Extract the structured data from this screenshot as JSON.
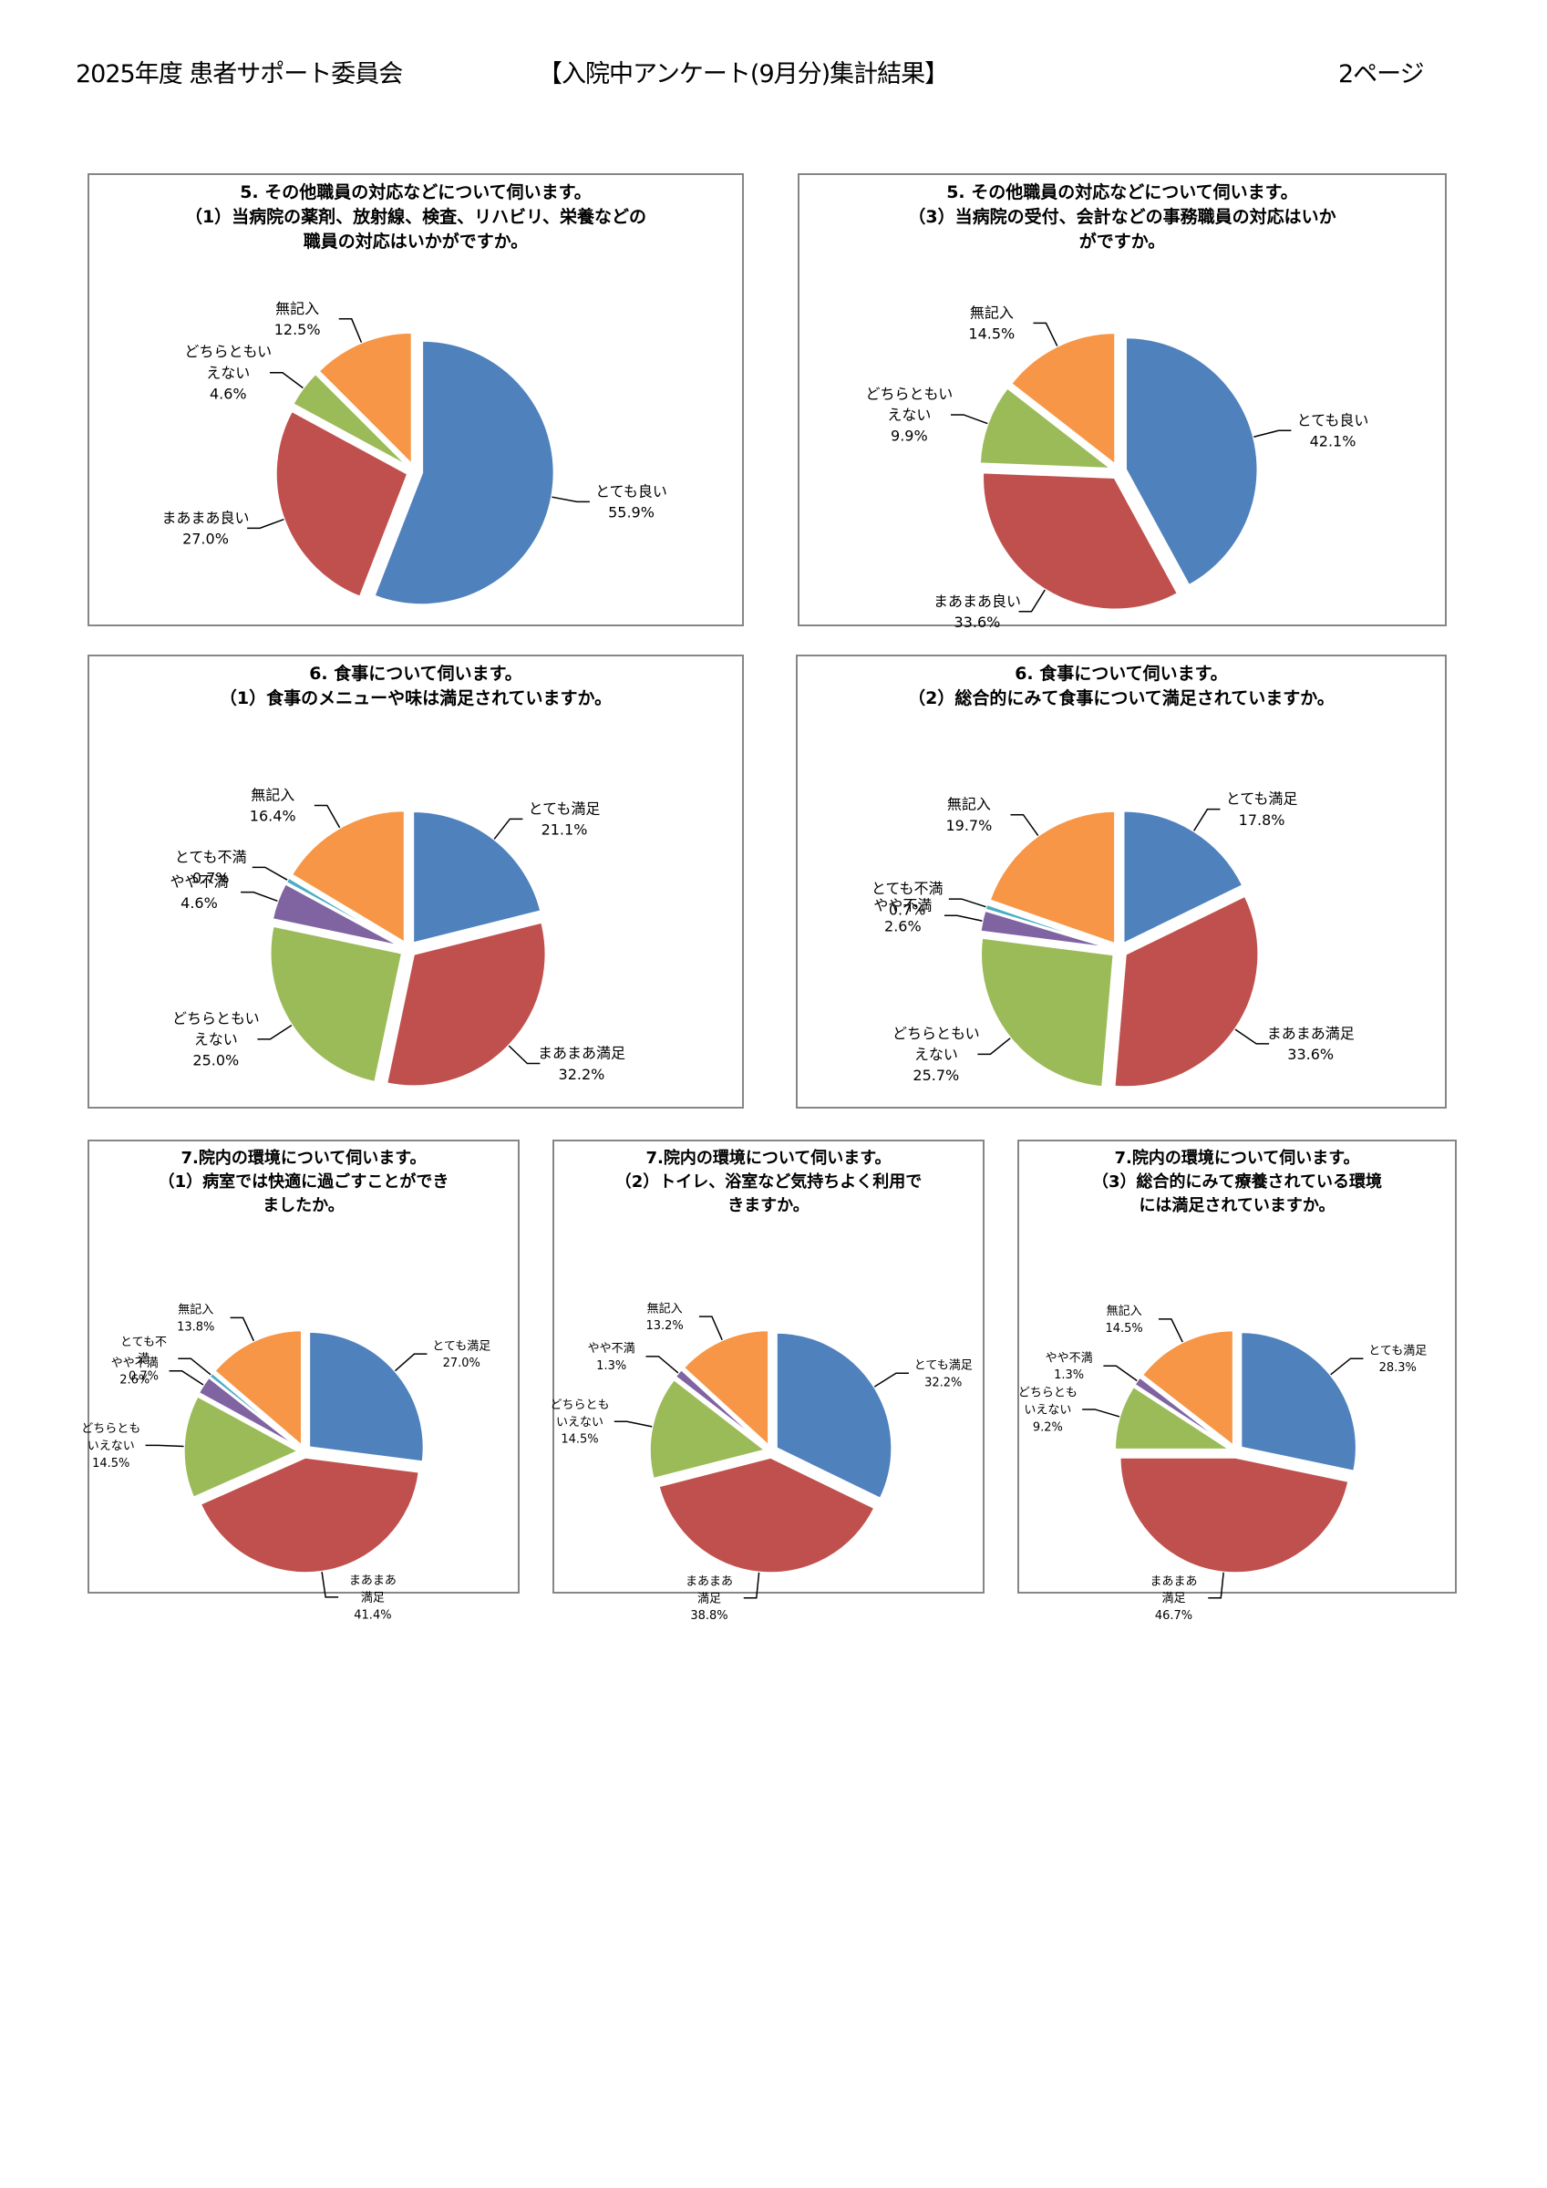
{
  "header": {
    "left": "2025年度 患者サポート委員会",
    "title": "【入院中アンケート(9月分)集計結果】",
    "page": "2ページ"
  },
  "colors": {
    "とても良い": "#4F81BD",
    "とても満足": "#4F81BD",
    "まあまあ良い": "#C0504D",
    "まあまあ満足": "#C0504D",
    "どちらともいえない": "#9BBB59",
    "やや不満": "#8064A2",
    "とても不満": "#4BACC6",
    "無記入": "#F79646"
  },
  "chart_data": [
    {
      "type": "pie",
      "title": "5. その他職員の対応などについて伺います。\n（1）当病院の薬剤、放射線、検査、リハビリ、栄養などの\n職員の対応はいかがですか。",
      "slices": [
        {
          "category": "とても良い",
          "label": "とても良い",
          "value": 55.9,
          "display": "55.9%"
        },
        {
          "category": "まあまあ良い",
          "label": "まあまあ良い",
          "value": 27.0,
          "display": "27.0%"
        },
        {
          "category": "どちらともいえない",
          "label": "どちらともい\nえない",
          "value": 4.6,
          "display": "4.6%"
        },
        {
          "category": "無記入",
          "label": "無記入",
          "value": 12.5,
          "display": "12.5%"
        }
      ]
    },
    {
      "type": "pie",
      "title": "5. その他職員の対応などについて伺います。\n（3）当病院の受付、会計などの事務職員の対応はいか\nがですか。",
      "slices": [
        {
          "category": "とても良い",
          "label": "とても良い",
          "value": 42.1,
          "display": "42.1%"
        },
        {
          "category": "まあまあ良い",
          "label": "まあまあ良い",
          "value": 33.6,
          "display": "33.6%"
        },
        {
          "category": "どちらともいえない",
          "label": "どちらともい\nえない",
          "value": 9.9,
          "display": "9.9%"
        },
        {
          "category": "無記入",
          "label": "無記入",
          "value": 14.5,
          "display": "14.5%"
        }
      ]
    },
    {
      "type": "pie",
      "title": "6. 食事について伺います。\n（1）食事のメニューや味は満足されていますか。",
      "slices": [
        {
          "category": "とても満足",
          "label": "とても満足",
          "value": 21.1,
          "display": "21.1%"
        },
        {
          "category": "まあまあ満足",
          "label": "まあまあ満足",
          "value": 32.2,
          "display": "32.2%"
        },
        {
          "category": "どちらともいえない",
          "label": "どちらともい\nえない",
          "value": 25.0,
          "display": "25.0%"
        },
        {
          "category": "やや不満",
          "label": "やや不満",
          "value": 4.6,
          "display": "4.6%"
        },
        {
          "category": "とても不満",
          "label": "とても不満",
          "value": 0.7,
          "display": "0.7%"
        },
        {
          "category": "無記入",
          "label": "無記入",
          "value": 16.4,
          "display": "16.4%"
        }
      ]
    },
    {
      "type": "pie",
      "title": "6. 食事について伺います。\n（2）総合的にみて食事について満足されていますか。",
      "slices": [
        {
          "category": "とても満足",
          "label": "とても満足",
          "value": 17.8,
          "display": "17.8%"
        },
        {
          "category": "まあまあ満足",
          "label": "まあまあ満足",
          "value": 33.6,
          "display": "33.6%"
        },
        {
          "category": "どちらともいえない",
          "label": "どちらともい\nえない",
          "value": 25.7,
          "display": "25.7%"
        },
        {
          "category": "やや不満",
          "label": "やや不満",
          "value": 2.6,
          "display": "2.6%"
        },
        {
          "category": "とても不満",
          "label": "とても不満",
          "value": 0.7,
          "display": "0.7%"
        },
        {
          "category": "無記入",
          "label": "無記入",
          "value": 19.7,
          "display": "19.7%"
        }
      ]
    },
    {
      "type": "pie",
      "title": "7.院内の環境について伺います。\n（1）病室では快適に過ごすことができ\nましたか。",
      "slices": [
        {
          "category": "とても満足",
          "label": "とても満足",
          "value": 27.0,
          "display": "27.0%"
        },
        {
          "category": "まあまあ満足",
          "label": "まあまあ\n満足",
          "value": 41.4,
          "display": "41.4%"
        },
        {
          "category": "どちらともいえない",
          "label": "どちらとも\nいえない",
          "value": 14.5,
          "display": "14.5%"
        },
        {
          "category": "やや不満",
          "label": "やや不満",
          "value": 2.6,
          "display": "2.6%"
        },
        {
          "category": "とても不満",
          "label": "とても不\n満",
          "value": 0.7,
          "display": "0.7%"
        },
        {
          "category": "無記入",
          "label": "無記入",
          "value": 13.8,
          "display": "13.8%"
        }
      ]
    },
    {
      "type": "pie",
      "title": "7.院内の環境について伺います。\n（2）トイレ、浴室など気持ちよく利用で\nきますか。",
      "slices": [
        {
          "category": "とても満足",
          "label": "とても満足",
          "value": 32.2,
          "display": "32.2%"
        },
        {
          "category": "まあまあ満足",
          "label": "まあまあ\n満足",
          "value": 38.8,
          "display": "38.8%"
        },
        {
          "category": "どちらともいえない",
          "label": "どちらとも\nいえない",
          "value": 14.5,
          "display": "14.5%"
        },
        {
          "category": "やや不満",
          "label": "やや不満",
          "value": 1.3,
          "display": "1.3%"
        },
        {
          "category": "無記入",
          "label": "無記入",
          "value": 13.2,
          "display": "13.2%"
        }
      ]
    },
    {
      "type": "pie",
      "title": "7.院内の環境について伺います。\n（3）総合的にみて療養されている環境\nには満足されていますか。",
      "slices": [
        {
          "category": "とても満足",
          "label": "とても満足",
          "value": 28.3,
          "display": "28.3%"
        },
        {
          "category": "まあまあ満足",
          "label": "まあまあ\n満足",
          "value": 46.7,
          "display": "46.7%"
        },
        {
          "category": "どちらともいえない",
          "label": "どちらとも\nいえない",
          "value": 9.2,
          "display": "9.2%"
        },
        {
          "category": "やや不満",
          "label": "やや不満",
          "value": 1.3,
          "display": "1.3%"
        },
        {
          "category": "無記入",
          "label": "無記入",
          "value": 14.5,
          "display": "14.5%"
        }
      ]
    }
  ]
}
